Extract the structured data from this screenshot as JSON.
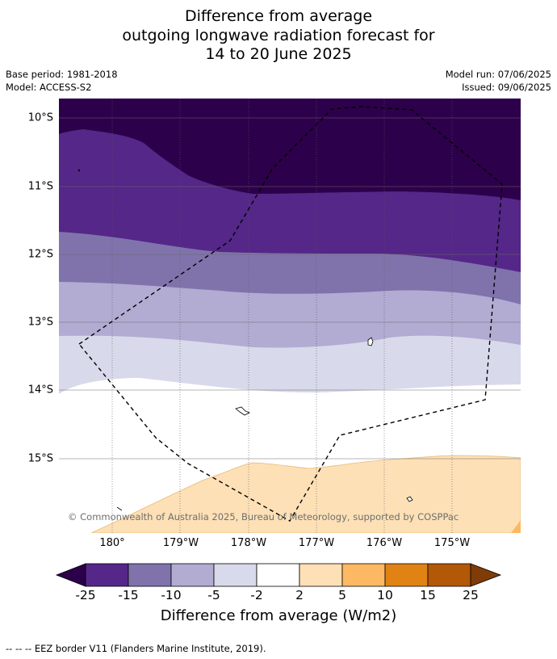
{
  "title": {
    "line1": "Difference from average",
    "line2": "outgoing longwave radiation forecast for",
    "line3": "14 to 20 June 2025"
  },
  "meta": {
    "base_period": "Base period: 1981-2018",
    "model": "Model: ACCESS-S2",
    "model_run": "Model run: 07/06/2025",
    "issued": "Issued: 09/06/2025"
  },
  "map": {
    "lat_labels": [
      "10°S",
      "11°S",
      "12°S",
      "13°S",
      "14°S",
      "15°S"
    ],
    "lon_labels": [
      "180°",
      "179°W",
      "178°W",
      "177°W",
      "176°W",
      "175°W"
    ],
    "copyright": "© Commonwealth of Australia 2025, Bureau of Meteorology, supported by COSPPac",
    "colors": {
      "lt_-25": "#2d004b",
      "-25_-15": "#542788",
      "-15_-10": "#8073ac",
      "-10_-5": "#b2abd2",
      "-5_-2": "#d8daeb",
      "-2_2": "#ffffff",
      "2_5": "#fee0b6",
      "5_10": "#fdb863",
      "10_15": "#e08214",
      "15_25": "#b35806",
      "gt_25": "#7f3b08"
    }
  },
  "colorbar": {
    "ticks": [
      "-25",
      "-15",
      "-10",
      "-5",
      "-2",
      "2",
      "5",
      "10",
      "15",
      "25"
    ],
    "label": "Difference from average (W/m2)"
  },
  "legend": {
    "text": "-- -- -- EEZ border V11 (Flanders Marine Institute, 2019)."
  }
}
